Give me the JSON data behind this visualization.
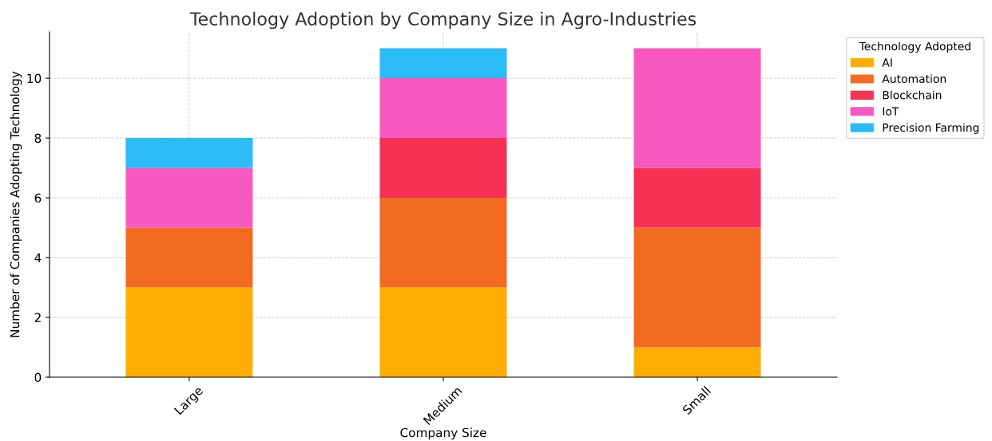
{
  "chart_data": {
    "type": "bar",
    "stacked": true,
    "title": "Technology Adoption by Company Size in Agro-Industries",
    "xlabel": "Company Size",
    "ylabel": "Number of Companies Adopting Technology",
    "legend_title": "Technology Adopted",
    "categories": [
      "Large",
      "Medium",
      "Small"
    ],
    "series": [
      {
        "name": "AI",
        "color": "#ffae00",
        "values": [
          3,
          3,
          1
        ]
      },
      {
        "name": "Automation",
        "color": "#f26b21",
        "values": [
          2,
          3,
          4
        ]
      },
      {
        "name": "Blockchain",
        "color": "#f53256",
        "values": [
          0,
          2,
          2
        ]
      },
      {
        "name": "IoT",
        "color": "#f859c0",
        "values": [
          2,
          2,
          4
        ]
      },
      {
        "name": "Precision Farming",
        "color": "#2bbcf7",
        "values": [
          1,
          1,
          0
        ]
      }
    ],
    "ylim": [
      0,
      11.55
    ],
    "yticks": [
      0,
      2,
      4,
      6,
      8,
      10
    ],
    "grid": true,
    "legend": "top right"
  }
}
